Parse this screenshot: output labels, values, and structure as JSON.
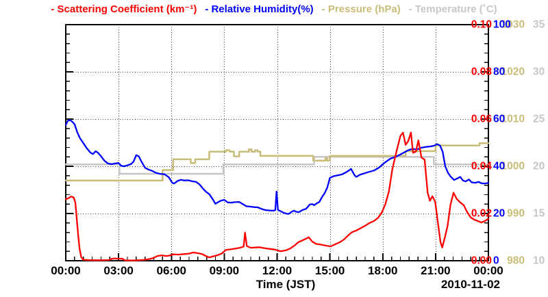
{
  "legend": {
    "items": [
      {
        "id": "scattering",
        "label": "- Scattering Coefficient (km⁻¹)",
        "color": "#ff0000"
      },
      {
        "id": "humidity",
        "label": "- Relative Humidity(%)",
        "color": "#0000ff"
      },
      {
        "id": "pressure",
        "label": "- Pressure (hPa)",
        "color": "#c8bc78"
      },
      {
        "id": "temperature",
        "label": "- Temperature (˚C)",
        "color": "#c6c6c6"
      }
    ]
  },
  "x_axis": {
    "title": "Time (JST)",
    "date_label": "2010-11-02",
    "tick_labels": [
      "00:00",
      "03:00",
      "06:00",
      "09:00",
      "12:00",
      "15:00",
      "18:00",
      "21:00",
      "00:00"
    ],
    "tick_hours": [
      0,
      3,
      6,
      9,
      12,
      15,
      18,
      21,
      24
    ]
  },
  "y_axes": [
    {
      "id": "pressure",
      "side": "left",
      "order": "outer",
      "color": "#c8bc78",
      "min": 980,
      "max": 1030,
      "ticks": [
        "980",
        "990",
        "1000",
        "1010",
        "1020",
        "1030"
      ]
    },
    {
      "id": "scattering",
      "side": "left",
      "order": "inner",
      "color": "#ff0000",
      "min": 0,
      "max": 0.1,
      "ticks": [
        "0.00",
        "0.02",
        "0.04",
        "0.06",
        "0.08",
        "0.10"
      ]
    },
    {
      "id": "humidity",
      "side": "right",
      "order": "inner",
      "color": "#0000ff",
      "min": 0,
      "max": 100,
      "ticks": [
        "0",
        "20",
        "40",
        "60",
        "80",
        "100"
      ]
    },
    {
      "id": "temperature",
      "side": "right",
      "order": "outer",
      "color": "#c6c6c6",
      "min": 10,
      "max": 35,
      "ticks": [
        "10",
        "15",
        "20",
        "25",
        "30",
        "35"
      ]
    }
  ],
  "chart_data": {
    "type": "line",
    "x_range": [
      0,
      24
    ],
    "grid": "dotted lines at every major tick, both directions",
    "legend_position": "top, single centered row",
    "series": [
      {
        "id": "temperature",
        "name": "Temperature (˚C)",
        "axis": "temperature",
        "color": "#c6c6c6",
        "style": "step",
        "width": 2.5,
        "points": [
          [
            0,
            20.2
          ],
          [
            3.05,
            19.2
          ],
          [
            8.95,
            20.2
          ],
          [
            14.1,
            21.0
          ],
          [
            20.9,
            20.2
          ],
          [
            24,
            20.2
          ]
        ]
      },
      {
        "id": "pressure",
        "name": "Pressure (hPa)",
        "axis": "pressure",
        "color": "#c8bc78",
        "style": "step",
        "width": 2.5,
        "points": [
          [
            0,
            997
          ],
          [
            5.5,
            999.2
          ],
          [
            6.1,
            1001.5
          ],
          [
            7.1,
            1000.7
          ],
          [
            7.35,
            1001.5
          ],
          [
            8.15,
            1003.1
          ],
          [
            9.1,
            1003.4
          ],
          [
            9.3,
            1003.1
          ],
          [
            9.55,
            1002.1
          ],
          [
            9.85,
            1003.1
          ],
          [
            10.4,
            1003.6
          ],
          [
            10.55,
            1003.1
          ],
          [
            10.75,
            1003.4
          ],
          [
            10.9,
            1003.1
          ],
          [
            11.05,
            1002.2
          ],
          [
            14.05,
            1001.2
          ],
          [
            14.75,
            1001.7
          ],
          [
            14.85,
            1001.2
          ],
          [
            15.0,
            1002.2
          ],
          [
            19.3,
            1003.2
          ],
          [
            21.0,
            1004.4
          ],
          [
            23.5,
            1004.9
          ],
          [
            24,
            1004.9
          ]
        ]
      },
      {
        "id": "humidity",
        "name": "Relative Humidity(%)",
        "axis": "humidity",
        "color": "#0000ff",
        "style": "line",
        "width": 2.3,
        "points": [
          [
            0,
            57.5
          ],
          [
            0.12,
            59.3
          ],
          [
            0.25,
            59.6
          ],
          [
            0.38,
            58.8
          ],
          [
            0.5,
            57.8
          ],
          [
            0.65,
            54.5
          ],
          [
            0.8,
            52
          ],
          [
            1.0,
            49.8
          ],
          [
            1.2,
            47.6
          ],
          [
            1.4,
            45.8
          ],
          [
            1.55,
            45.2
          ],
          [
            1.7,
            46.4
          ],
          [
            1.85,
            45.6
          ],
          [
            2.0,
            44.3
          ],
          [
            2.2,
            42.3
          ],
          [
            2.4,
            41.2
          ],
          [
            2.6,
            40.9
          ],
          [
            2.8,
            41.2
          ],
          [
            3.0,
            41.4
          ],
          [
            3.15,
            40.2
          ],
          [
            3.3,
            40
          ],
          [
            3.5,
            40.4
          ],
          [
            3.7,
            40.9
          ],
          [
            3.85,
            42
          ],
          [
            4.0,
            44.7
          ],
          [
            4.15,
            44.2
          ],
          [
            4.3,
            42
          ],
          [
            4.5,
            39.4
          ],
          [
            4.7,
            38.6
          ],
          [
            4.9,
            38.1
          ],
          [
            5.1,
            37.3
          ],
          [
            5.35,
            36.8
          ],
          [
            5.6,
            36.6
          ],
          [
            5.85,
            35.4
          ],
          [
            6.05,
            33
          ],
          [
            6.15,
            32.7
          ],
          [
            6.35,
            33.8
          ],
          [
            6.55,
            34.3
          ],
          [
            6.75,
            34
          ],
          [
            6.95,
            34.1
          ],
          [
            7.15,
            33.7
          ],
          [
            7.4,
            33.4
          ],
          [
            7.6,
            32.3
          ],
          [
            7.8,
            30.5
          ],
          [
            7.95,
            29.3
          ],
          [
            8.15,
            28.2
          ],
          [
            8.35,
            26
          ],
          [
            8.5,
            24.1
          ],
          [
            8.65,
            24.8
          ],
          [
            8.8,
            25.4
          ],
          [
            9.0,
            25.8
          ],
          [
            9.2,
            24.7
          ],
          [
            9.4,
            24.6
          ],
          [
            9.6,
            24.8
          ],
          [
            9.85,
            24.9
          ],
          [
            10.05,
            24
          ],
          [
            10.25,
            23.1
          ],
          [
            10.5,
            22.9
          ],
          [
            10.7,
            22.7
          ],
          [
            10.9,
            22.6
          ],
          [
            11.1,
            22
          ],
          [
            11.3,
            21.5
          ],
          [
            11.55,
            21.3
          ],
          [
            11.75,
            21.2
          ],
          [
            11.9,
            21.4
          ],
          [
            11.97,
            29.3
          ],
          [
            12.05,
            21.5
          ],
          [
            12.2,
            21
          ],
          [
            12.35,
            20.4
          ],
          [
            12.5,
            20
          ],
          [
            12.65,
            19.8
          ],
          [
            12.8,
            20.6
          ],
          [
            12.95,
            21.2
          ],
          [
            13.1,
            20.7
          ],
          [
            13.25,
            20.6
          ],
          [
            13.45,
            21.5
          ],
          [
            13.65,
            22
          ],
          [
            13.85,
            23.8
          ],
          [
            14.0,
            24
          ],
          [
            14.1,
            23.5
          ],
          [
            14.25,
            24.3
          ],
          [
            14.4,
            24.9
          ],
          [
            14.55,
            27
          ],
          [
            14.7,
            28.6
          ],
          [
            14.85,
            31
          ],
          [
            15.0,
            35.1
          ],
          [
            15.2,
            35.8
          ],
          [
            15.45,
            36.2
          ],
          [
            15.7,
            36.6
          ],
          [
            15.95,
            37.6
          ],
          [
            16.2,
            38.9
          ],
          [
            16.4,
            36.2
          ],
          [
            16.5,
            35.5
          ],
          [
            16.7,
            36.4
          ],
          [
            16.95,
            37
          ],
          [
            17.2,
            37.6
          ],
          [
            17.5,
            38.2
          ],
          [
            17.8,
            39.5
          ],
          [
            18.0,
            40.9
          ],
          [
            18.2,
            42
          ],
          [
            18.45,
            43.3
          ],
          [
            18.7,
            43.9
          ],
          [
            18.95,
            44.8
          ],
          [
            19.2,
            45.8
          ],
          [
            19.45,
            46.8
          ],
          [
            19.7,
            47.4
          ],
          [
            19.95,
            47.1
          ],
          [
            20.2,
            47.9
          ],
          [
            20.45,
            48.2
          ],
          [
            20.7,
            48.4
          ],
          [
            20.9,
            48.7
          ],
          [
            21.1,
            49.4
          ],
          [
            21.25,
            48.8
          ],
          [
            21.4,
            46.2
          ],
          [
            21.55,
            40
          ],
          [
            21.7,
            37.3
          ],
          [
            21.85,
            35.7
          ],
          [
            22.05,
            34.2
          ],
          [
            22.25,
            34.9
          ],
          [
            22.4,
            35.5
          ],
          [
            22.55,
            34
          ],
          [
            22.7,
            33.6
          ],
          [
            22.9,
            34.4
          ],
          [
            23.05,
            33.2
          ],
          [
            23.25,
            33
          ],
          [
            23.45,
            33.4
          ],
          [
            23.6,
            32.8
          ],
          [
            23.8,
            32.7
          ],
          [
            24.0,
            33
          ]
        ]
      },
      {
        "id": "scattering",
        "name": "Scattering Coefficient (km⁻¹)",
        "axis": "scattering",
        "color": "#ff0000",
        "style": "line",
        "width": 2.3,
        "points": [
          [
            0,
            0.026
          ],
          [
            0.15,
            0.0265
          ],
          [
            0.3,
            0.0272
          ],
          [
            0.45,
            0.0268
          ],
          [
            0.55,
            0.0245
          ],
          [
            0.62,
            0.0183
          ],
          [
            0.7,
            0.0113
          ],
          [
            0.78,
            0.0052
          ],
          [
            0.88,
            0.0015
          ],
          [
            1.0,
            0.0004
          ],
          [
            1.5,
            0.0002
          ],
          [
            2.0,
            0.0002
          ],
          [
            2.45,
            0.0003
          ],
          [
            2.6,
            0.0008
          ],
          [
            2.8,
            0.001
          ],
          [
            3.0,
            0.0008
          ],
          [
            3.2,
            0.0009
          ],
          [
            3.35,
            0.0002
          ],
          [
            3.7,
            0.0001
          ],
          [
            4.1,
            0.0002
          ],
          [
            4.5,
            0.0004
          ],
          [
            4.8,
            0.0008
          ],
          [
            5.0,
            0.0012
          ],
          [
            5.2,
            0.002
          ],
          [
            5.45,
            0.0023
          ],
          [
            5.7,
            0.002
          ],
          [
            5.9,
            0.0022
          ],
          [
            6.1,
            0.0027
          ],
          [
            6.4,
            0.0026
          ],
          [
            6.7,
            0.0028
          ],
          [
            7.0,
            0.003
          ],
          [
            7.25,
            0.0035
          ],
          [
            7.5,
            0.0032
          ],
          [
            7.75,
            0.0028
          ],
          [
            7.95,
            0.002
          ],
          [
            8.15,
            0.0014
          ],
          [
            8.4,
            0.0019
          ],
          [
            8.6,
            0.0023
          ],
          [
            8.85,
            0.003
          ],
          [
            9.1,
            0.0046
          ],
          [
            9.35,
            0.0048
          ],
          [
            9.6,
            0.0051
          ],
          [
            9.9,
            0.0055
          ],
          [
            10.1,
            0.006
          ],
          [
            10.18,
            0.0119
          ],
          [
            10.28,
            0.0062
          ],
          [
            10.5,
            0.0055
          ],
          [
            10.75,
            0.0056
          ],
          [
            11.0,
            0.0057
          ],
          [
            11.3,
            0.0053
          ],
          [
            11.6,
            0.005
          ],
          [
            11.9,
            0.0047
          ],
          [
            12.2,
            0.004
          ],
          [
            12.5,
            0.0044
          ],
          [
            12.75,
            0.0052
          ],
          [
            13.0,
            0.0065
          ],
          [
            13.2,
            0.0078
          ],
          [
            13.4,
            0.0085
          ],
          [
            13.6,
            0.0092
          ],
          [
            13.8,
            0.0099
          ],
          [
            14.0,
            0.0081
          ],
          [
            14.2,
            0.0072
          ],
          [
            14.5,
            0.0068
          ],
          [
            14.75,
            0.0064
          ],
          [
            15.05,
            0.0061
          ],
          [
            15.3,
            0.007
          ],
          [
            15.55,
            0.0078
          ],
          [
            15.8,
            0.009
          ],
          [
            16.05,
            0.0108
          ],
          [
            16.25,
            0.0121
          ],
          [
            16.5,
            0.0128
          ],
          [
            16.75,
            0.0138
          ],
          [
            17.0,
            0.0148
          ],
          [
            17.25,
            0.016
          ],
          [
            17.5,
            0.0168
          ],
          [
            17.75,
            0.0183
          ],
          [
            17.95,
            0.0205
          ],
          [
            18.15,
            0.024
          ],
          [
            18.35,
            0.0293
          ],
          [
            18.55,
            0.039
          ],
          [
            18.8,
            0.0468
          ],
          [
            19.0,
            0.0528
          ],
          [
            19.15,
            0.0543
          ],
          [
            19.3,
            0.0491
          ],
          [
            19.45,
            0.0507
          ],
          [
            19.6,
            0.0543
          ],
          [
            19.72,
            0.0457
          ],
          [
            19.88,
            0.0462
          ],
          [
            20.02,
            0.051
          ],
          [
            20.2,
            0.0437
          ],
          [
            20.38,
            0.0428
          ],
          [
            20.55,
            0.0288
          ],
          [
            20.68,
            0.0254
          ],
          [
            20.82,
            0.0273
          ],
          [
            20.98,
            0.0249
          ],
          [
            21.12,
            0.0167
          ],
          [
            21.28,
            0.0078
          ],
          [
            21.38,
            0.0056
          ],
          [
            21.55,
            0.0105
          ],
          [
            21.68,
            0.0148
          ],
          [
            21.85,
            0.0238
          ],
          [
            22.02,
            0.0288
          ],
          [
            22.2,
            0.0262
          ],
          [
            22.4,
            0.0247
          ],
          [
            22.6,
            0.0235
          ],
          [
            22.8,
            0.0205
          ],
          [
            23.0,
            0.0183
          ],
          [
            23.2,
            0.0174
          ],
          [
            23.4,
            0.0168
          ],
          [
            23.6,
            0.0162
          ],
          [
            23.8,
            0.0168
          ],
          [
            24.0,
            0.0178
          ]
        ]
      }
    ]
  }
}
